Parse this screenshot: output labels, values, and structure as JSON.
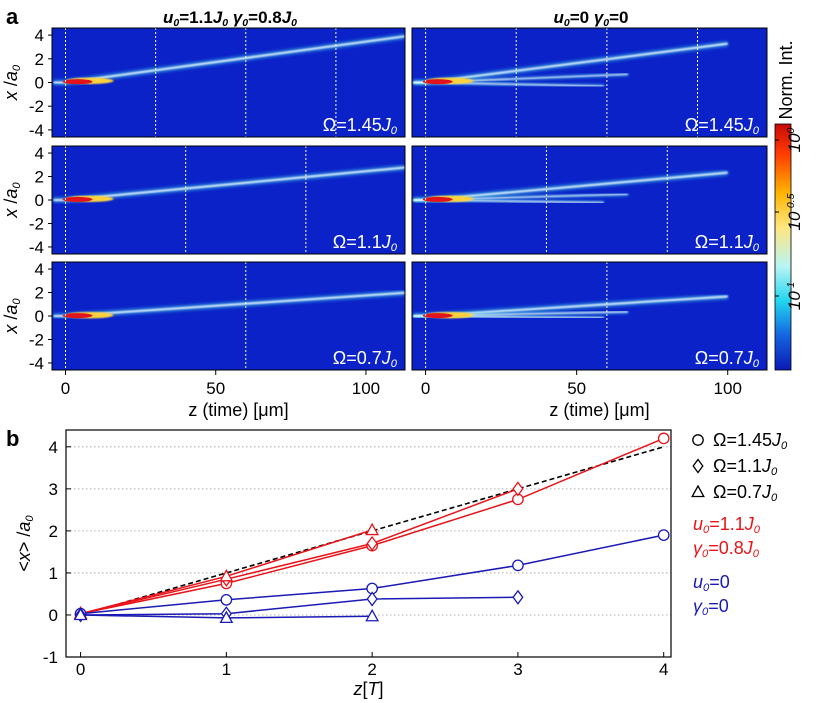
{
  "panel_a": {
    "panel_letter": "a",
    "column_titles": [
      {
        "parts": [
          {
            "t": "u",
            "i": true
          },
          {
            "t": "0",
            "i": true,
            "sub": true
          },
          {
            "t": "=1.1"
          },
          {
            "t": "J",
            "i": true
          },
          {
            "t": "0",
            "i": true,
            "sub": true
          },
          {
            "t": "  "
          },
          {
            "t": "γ",
            "i": true
          },
          {
            "t": "0",
            "i": true,
            "sub": true
          },
          {
            "t": "=0.8"
          },
          {
            "t": "J",
            "i": true
          },
          {
            "t": "0",
            "i": true,
            "sub": true
          }
        ]
      },
      {
        "parts": [
          {
            "t": "u",
            "i": true
          },
          {
            "t": "0",
            "i": true,
            "sub": true
          },
          {
            "t": "=0  "
          },
          {
            "t": "γ",
            "i": true
          },
          {
            "t": "0",
            "i": true,
            "sub": true
          },
          {
            "t": "=0"
          }
        ]
      }
    ],
    "y_label": {
      "parts": [
        {
          "t": "x",
          "i": true
        },
        {
          "t": " /"
        },
        {
          "t": "a",
          "i": true
        },
        {
          "t": "0",
          "i": true,
          "sub": true
        }
      ]
    },
    "y_ticks": [
      "4",
      "2",
      "0",
      "-2",
      "-4"
    ],
    "x_ticks": [
      "0",
      "50",
      "100"
    ],
    "x_label": "z (time) [μm]",
    "colorbar_label": "Norm. Int.",
    "colorbar_ticks": [
      {
        "base": "10",
        "exp": "0"
      },
      {
        "base": "10",
        "exp": "-0.5"
      },
      {
        "base": "10",
        "exp": "-1"
      }
    ],
    "colors": {
      "background": "#0a22c8",
      "high": "#e0141a",
      "mid": "#ffd23a",
      "low": "#4fe6ee"
    },
    "rows": [
      {
        "omega": {
          "parts": [
            {
              "t": "Ω=1.45"
            },
            {
              "t": "J",
              "i": true
            },
            {
              "t": "0",
              "i": true,
              "sub": true
            }
          ]
        },
        "slope": 3.45,
        "markers_left_um": [
          0,
          30,
          60,
          90
        ],
        "markers_right_um": [
          0,
          30,
          60,
          90
        ]
      },
      {
        "omega": {
          "parts": [
            {
              "t": "Ω=1.1"
            },
            {
              "t": "J",
              "i": true
            },
            {
              "t": "0",
              "i": true,
              "sub": true
            }
          ]
        },
        "slope": 2.45,
        "markers_left_um": [
          0,
          40,
          80
        ],
        "markers_right_um": [
          0,
          40,
          80
        ]
      },
      {
        "omega": {
          "parts": [
            {
              "t": "Ω=0.7"
            },
            {
              "t": "J",
              "i": true
            },
            {
              "t": "0",
              "i": true,
              "sub": true
            }
          ]
        },
        "slope": 1.75,
        "markers_left_um": [
          0,
          60
        ],
        "markers_right_um": [
          0,
          60
        ]
      }
    ]
  },
  "chart_data": {
    "type": "line",
    "panel_letter": "b",
    "xlabel": {
      "parts": [
        {
          "t": "z",
          "i": true
        },
        {
          "t": "["
        },
        {
          "t": "T",
          "i": true
        },
        {
          "t": "]"
        }
      ]
    },
    "ylabel": {
      "parts": [
        {
          "t": "<"
        },
        {
          "t": "x",
          "i": true
        },
        {
          "t": "> /"
        },
        {
          "t": "a",
          "i": true
        },
        {
          "t": "0",
          "i": true,
          "sub": true
        }
      ]
    },
    "xlim": [
      -0.1,
      4.05
    ],
    "ylim": [
      -1,
      4.4
    ],
    "x_ticks": [
      0,
      1,
      2,
      3,
      4
    ],
    "y_ticks": [
      -1,
      0,
      1,
      2,
      3,
      4
    ],
    "grid": "horizontal dotted",
    "reference_line": {
      "style": "dashed",
      "color": "#000000",
      "x": [
        0,
        4
      ],
      "y": [
        0,
        4
      ]
    },
    "series": [
      {
        "name": "Ω=1.45J0 (u0=1.1J0, γ0=0.8J0)",
        "marker": "circle",
        "color": "#e8141a",
        "x": [
          0,
          1,
          2,
          3,
          4
        ],
        "y": [
          0.03,
          0.75,
          1.65,
          2.75,
          4.2
        ]
      },
      {
        "name": "Ω=1.1J0 (u0=1.1J0, γ0=0.8J0)",
        "marker": "diamond",
        "color": "#e8141a",
        "x": [
          0,
          1,
          2,
          3
        ],
        "y": [
          0.03,
          0.85,
          1.7,
          3.0
        ]
      },
      {
        "name": "Ω=0.7J0 (u0=1.1J0, γ0=0.8J0)",
        "marker": "triangle",
        "color": "#e8141a",
        "x": [
          0,
          1,
          2
        ],
        "y": [
          0.03,
          0.92,
          2.02
        ]
      },
      {
        "name": "Ω=1.45J0 (u0=0, γ0=0)",
        "marker": "circle",
        "color": "#1a1ab4",
        "x": [
          0,
          1,
          2,
          3,
          4
        ],
        "y": [
          0.03,
          0.36,
          0.63,
          1.18,
          1.9
        ]
      },
      {
        "name": "Ω=1.1J0 (u0=0, γ0=0)",
        "marker": "diamond",
        "color": "#1a1ab4",
        "x": [
          0,
          1,
          2,
          3
        ],
        "y": [
          0.0,
          0.03,
          0.38,
          0.42
        ]
      },
      {
        "name": "Ω=0.7J0 (u0=0, γ0=0)",
        "marker": "triangle",
        "color": "#1a1ab4",
        "x": [
          0,
          1,
          2
        ],
        "y": [
          0.0,
          -0.07,
          -0.03
        ]
      }
    ],
    "legend": {
      "placement": "right",
      "markers": [
        {
          "marker": "circle",
          "parts": [
            {
              "t": "Ω=1.45"
            },
            {
              "t": "J",
              "i": true
            },
            {
              "t": "0",
              "i": true,
              "sub": true
            }
          ]
        },
        {
          "marker": "diamond",
          "parts": [
            {
              "t": "Ω=1.1"
            },
            {
              "t": "J",
              "i": true
            },
            {
              "t": "0",
              "i": true,
              "sub": true
            }
          ]
        },
        {
          "marker": "triangle",
          "parts": [
            {
              "t": "Ω=0.7"
            },
            {
              "t": "J",
              "i": true
            },
            {
              "t": "0",
              "i": true,
              "sub": true
            }
          ]
        }
      ],
      "conditions": [
        {
          "color": "#e8141a",
          "lines": [
            [
              {
                "t": "u",
                "i": true
              },
              {
                "t": "0",
                "i": true,
                "sub": true
              },
              {
                "t": "=1.1"
              },
              {
                "t": "J",
                "i": true
              },
              {
                "t": "0",
                "i": true,
                "sub": true
              }
            ],
            [
              {
                "t": "γ",
                "i": true
              },
              {
                "t": "0",
                "i": true,
                "sub": true
              },
              {
                "t": "=0.8"
              },
              {
                "t": "J",
                "i": true
              },
              {
                "t": "0",
                "i": true,
                "sub": true
              }
            ]
          ]
        },
        {
          "color": "#1a1ab4",
          "lines": [
            [
              {
                "t": "u",
                "i": true
              },
              {
                "t": "0",
                "i": true,
                "sub": true
              },
              {
                "t": "=0"
              }
            ],
            [
              {
                "t": "γ",
                "i": true
              },
              {
                "t": "0",
                "i": true,
                "sub": true
              },
              {
                "t": "=0"
              }
            ]
          ]
        }
      ]
    }
  }
}
